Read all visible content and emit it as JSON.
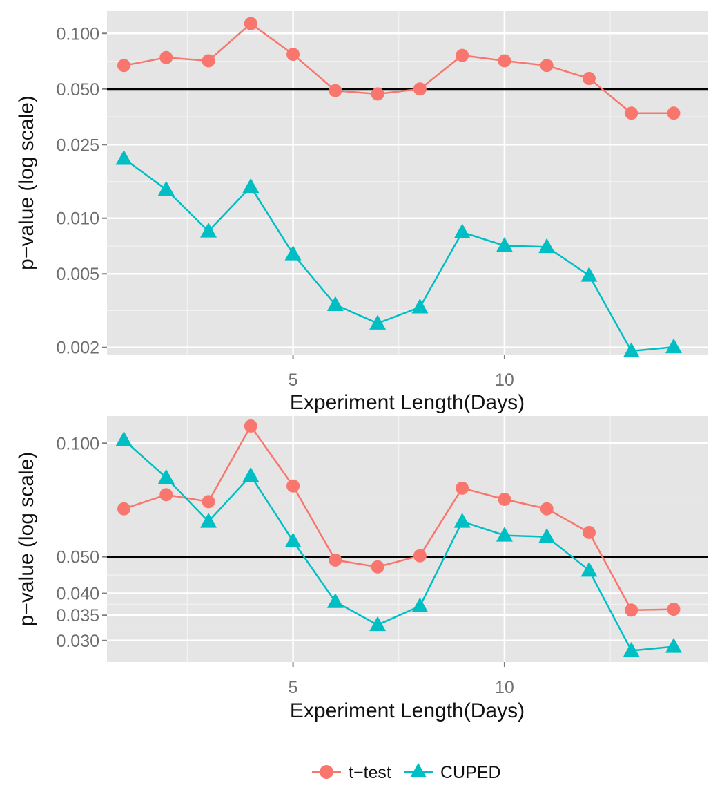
{
  "colors": {
    "t_test": "#F8766D",
    "cuped": "#00BFC4",
    "panel_bg": "#E5E5E5",
    "grid_major": "#FFFFFF",
    "threshold_line": "#000000"
  },
  "legend": {
    "position": "bottom",
    "items": [
      {
        "label": "t−test",
        "shape": "circle",
        "color": "#F8766D"
      },
      {
        "label": "CUPED",
        "shape": "triangle",
        "color": "#00BFC4"
      }
    ]
  },
  "chart_data": [
    {
      "type": "line",
      "title": "",
      "xlabel": "Experiment Length(Days)",
      "ylabel": "p−value (log scale)",
      "y_scale": "log",
      "xlim": [
        0.6,
        14.8
      ],
      "ylim": [
        0.00183,
        0.132
      ],
      "x_ticks": [
        5,
        10
      ],
      "x_tick_labels": [
        "5",
        "10"
      ],
      "y_ticks": [
        0.1,
        0.05,
        0.025,
        0.01,
        0.005,
        0.002
      ],
      "y_tick_labels": [
        "0.100",
        "0.050",
        "0.025",
        "0.010",
        "0.005",
        "0.002"
      ],
      "grid": true,
      "hline": 0.05,
      "x": [
        1,
        2,
        3,
        4,
        5,
        6,
        7,
        8,
        9,
        10,
        11,
        12,
        13,
        14
      ],
      "series": [
        {
          "name": "t−test",
          "shape": "circle",
          "color": "#F8766D",
          "values": [
            0.067,
            0.074,
            0.071,
            0.113,
            0.077,
            0.049,
            0.047,
            0.05,
            0.076,
            0.071,
            0.067,
            0.057,
            0.037,
            0.037
          ]
        },
        {
          "name": "CUPED",
          "shape": "triangle",
          "color": "#00BFC4",
          "values": [
            0.021,
            0.0143,
            0.0085,
            0.0148,
            0.0064,
            0.0034,
            0.0027,
            0.0033,
            0.0084,
            0.0071,
            0.007,
            0.0049,
            0.00191,
            0.00201
          ]
        }
      ]
    },
    {
      "type": "line",
      "title": "",
      "xlabel": "Experiment Length(Days)",
      "ylabel": "p−value (log scale)",
      "y_scale": "log",
      "xlim": [
        0.6,
        14.8
      ],
      "ylim": [
        0.0263,
        0.118
      ],
      "x_ticks": [
        5,
        10
      ],
      "x_tick_labels": [
        "5",
        "10"
      ],
      "y_ticks": [
        0.1,
        0.05,
        0.04,
        0.035,
        0.03
      ],
      "y_tick_labels": [
        "0.100",
        "0.050",
        "0.040",
        "0.035",
        "0.030"
      ],
      "grid": true,
      "hline": 0.05,
      "x": [
        1,
        2,
        3,
        4,
        5,
        6,
        7,
        8,
        9,
        10,
        11,
        12,
        13,
        14
      ],
      "series": [
        {
          "name": "t−test",
          "shape": "circle",
          "color": "#F8766D",
          "values": [
            0.067,
            0.073,
            0.07,
            0.111,
            0.077,
            0.049,
            0.047,
            0.0503,
            0.076,
            0.071,
            0.067,
            0.058,
            0.0361,
            0.0363
          ]
        },
        {
          "name": "CUPED",
          "shape": "triangle",
          "color": "#00BFC4",
          "values": [
            0.102,
            0.081,
            0.062,
            0.082,
            0.055,
            0.038,
            0.033,
            0.037,
            0.062,
            0.057,
            0.0565,
            0.046,
            0.0282,
            0.0289
          ]
        }
      ]
    }
  ]
}
